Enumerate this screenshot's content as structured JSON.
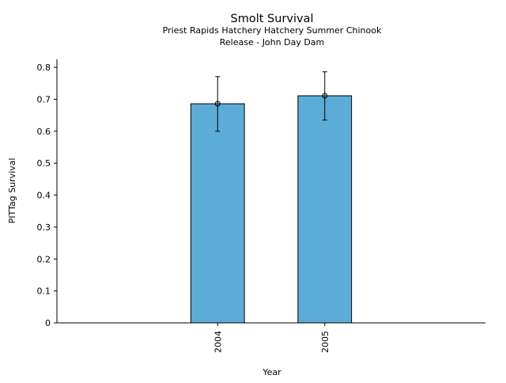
{
  "chart_data": {
    "type": "bar",
    "title": "Smolt Survival",
    "subtitle_lines": [
      "Priest Rapids Hatchery Hatchery Summer Chinook",
      "Release - John Day Dam"
    ],
    "xlabel": "Year",
    "ylabel": "PITTag Survival",
    "categories": [
      "2004",
      "2005"
    ],
    "values": [
      0.686,
      0.711
    ],
    "error_low": [
      0.6,
      0.635
    ],
    "error_high": [
      0.771,
      0.786
    ],
    "ylim": [
      0,
      0.825
    ],
    "yticks": [
      "0",
      "0.1",
      "0.2",
      "0.3",
      "0.4",
      "0.5",
      "0.6",
      "0.7",
      "0.8"
    ],
    "ytick_values": [
      0,
      0.1,
      0.2,
      0.3,
      0.4,
      0.5,
      0.6,
      0.7,
      0.8
    ],
    "grid": false,
    "bar_color": "#5bacd6"
  }
}
